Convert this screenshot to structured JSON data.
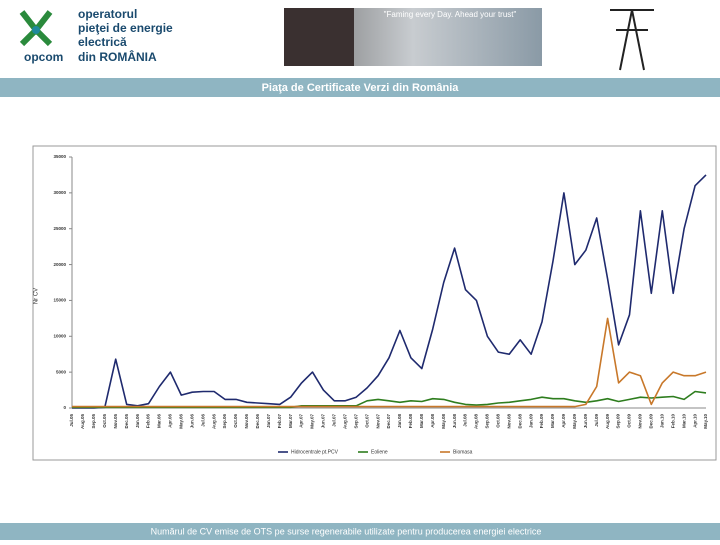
{
  "header": {
    "logo_lines": [
      "operatorul",
      "pieţei de energie",
      "electrică",
      "din ROMÂNIA"
    ],
    "logo_brand": "opcom",
    "slogan": "\"Faming every Day. Ahead your trust\"",
    "title": "Piaţa de Certificate Verzi din România"
  },
  "chart_data": {
    "type": "line",
    "ylabel": "Nr CV",
    "ylim": [
      0,
      35000
    ],
    "yticks": [
      0,
      5000,
      10000,
      15000,
      20000,
      25000,
      30000,
      35000
    ],
    "grid": false,
    "legend": "bottom",
    "categories": [
      "Jul.05",
      "Aug.05",
      "Sep.05",
      "Oct.05",
      "Nov.05",
      "Dec.05",
      "Jan.06",
      "Feb.06",
      "Mar.06",
      "Apr.06",
      "May.06",
      "Jun.06",
      "Jul.06",
      "Aug.06",
      "Sep.06",
      "Oct.06",
      "Nov.06",
      "Dec.06",
      "Jan.07",
      "Feb.07",
      "Mar.07",
      "Apr.07",
      "May.07",
      "Jun.07",
      "Jul.07",
      "Aug.07",
      "Sep.07",
      "Oct.07",
      "Nov.07",
      "Dec.07",
      "Jan.08",
      "Feb.08",
      "Mar.08",
      "Apr.08",
      "May.08",
      "Jun.08",
      "Jul.08",
      "Aug.08",
      "Sep.08",
      "Oct.08",
      "Nov.08",
      "Dec.08",
      "Jan.09",
      "Feb.09",
      "Mar.09",
      "Apr.09",
      "May.09",
      "Jun.09",
      "Jul.09",
      "Aug.09",
      "Sep.09",
      "Oct.09",
      "Nov.09",
      "Dec.09",
      "Jan.10",
      "Feb.10",
      "Mar.10",
      "Apr.10",
      "May.10"
    ],
    "series": [
      {
        "name": "Hidrocentrale pt.PCV",
        "color": "#1f2a6e",
        "values": [
          0,
          0,
          0,
          100,
          6800,
          500,
          300,
          600,
          3000,
          5000,
          1800,
          2200,
          2300,
          2300,
          1200,
          1200,
          800,
          700,
          600,
          500,
          1500,
          3500,
          5000,
          2500,
          1000,
          1000,
          1500,
          2800,
          4500,
          7000,
          10800,
          7000,
          5500,
          11000,
          17500,
          22300,
          16500,
          15000,
          10000,
          7800,
          7500,
          9500,
          7500,
          12000,
          20500,
          30000,
          20000,
          22000,
          26500,
          18000,
          8800,
          13000,
          27500,
          16000,
          27500,
          16000,
          25000,
          31000,
          32500
        ]
      },
      {
        "name": "Eoliene",
        "color": "#2e7d1e",
        "values": [
          100,
          100,
          100,
          100,
          100,
          100,
          100,
          100,
          100,
          100,
          100,
          100,
          100,
          100,
          100,
          100,
          100,
          100,
          100,
          100,
          100,
          300,
          300,
          300,
          300,
          300,
          300,
          1000,
          1200,
          1000,
          800,
          1000,
          900,
          1300,
          1200,
          800,
          500,
          400,
          500,
          700,
          800,
          1000,
          1200,
          1500,
          1300,
          1300,
          1000,
          800,
          1000,
          1300,
          900,
          1200,
          1500,
          1400,
          1500,
          1600,
          1200,
          2300,
          2100
        ]
      },
      {
        "name": "Biomasa",
        "color": "#c8782a",
        "values": [
          200,
          200,
          200,
          200,
          200,
          200,
          200,
          200,
          200,
          200,
          200,
          200,
          200,
          200,
          200,
          200,
          200,
          200,
          200,
          200,
          200,
          200,
          200,
          200,
          200,
          200,
          200,
          200,
          200,
          200,
          200,
          200,
          200,
          200,
          200,
          200,
          200,
          200,
          200,
          200,
          200,
          200,
          200,
          200,
          200,
          200,
          200,
          500,
          3000,
          12500,
          3500,
          5000,
          4500,
          500,
          3500,
          5000,
          4500,
          4500,
          5000
        ]
      }
    ]
  },
  "footer": {
    "caption": "Numărul de CV emise de OTS pe surse regenerabile utilizate pentru producerea energiei electrice"
  }
}
